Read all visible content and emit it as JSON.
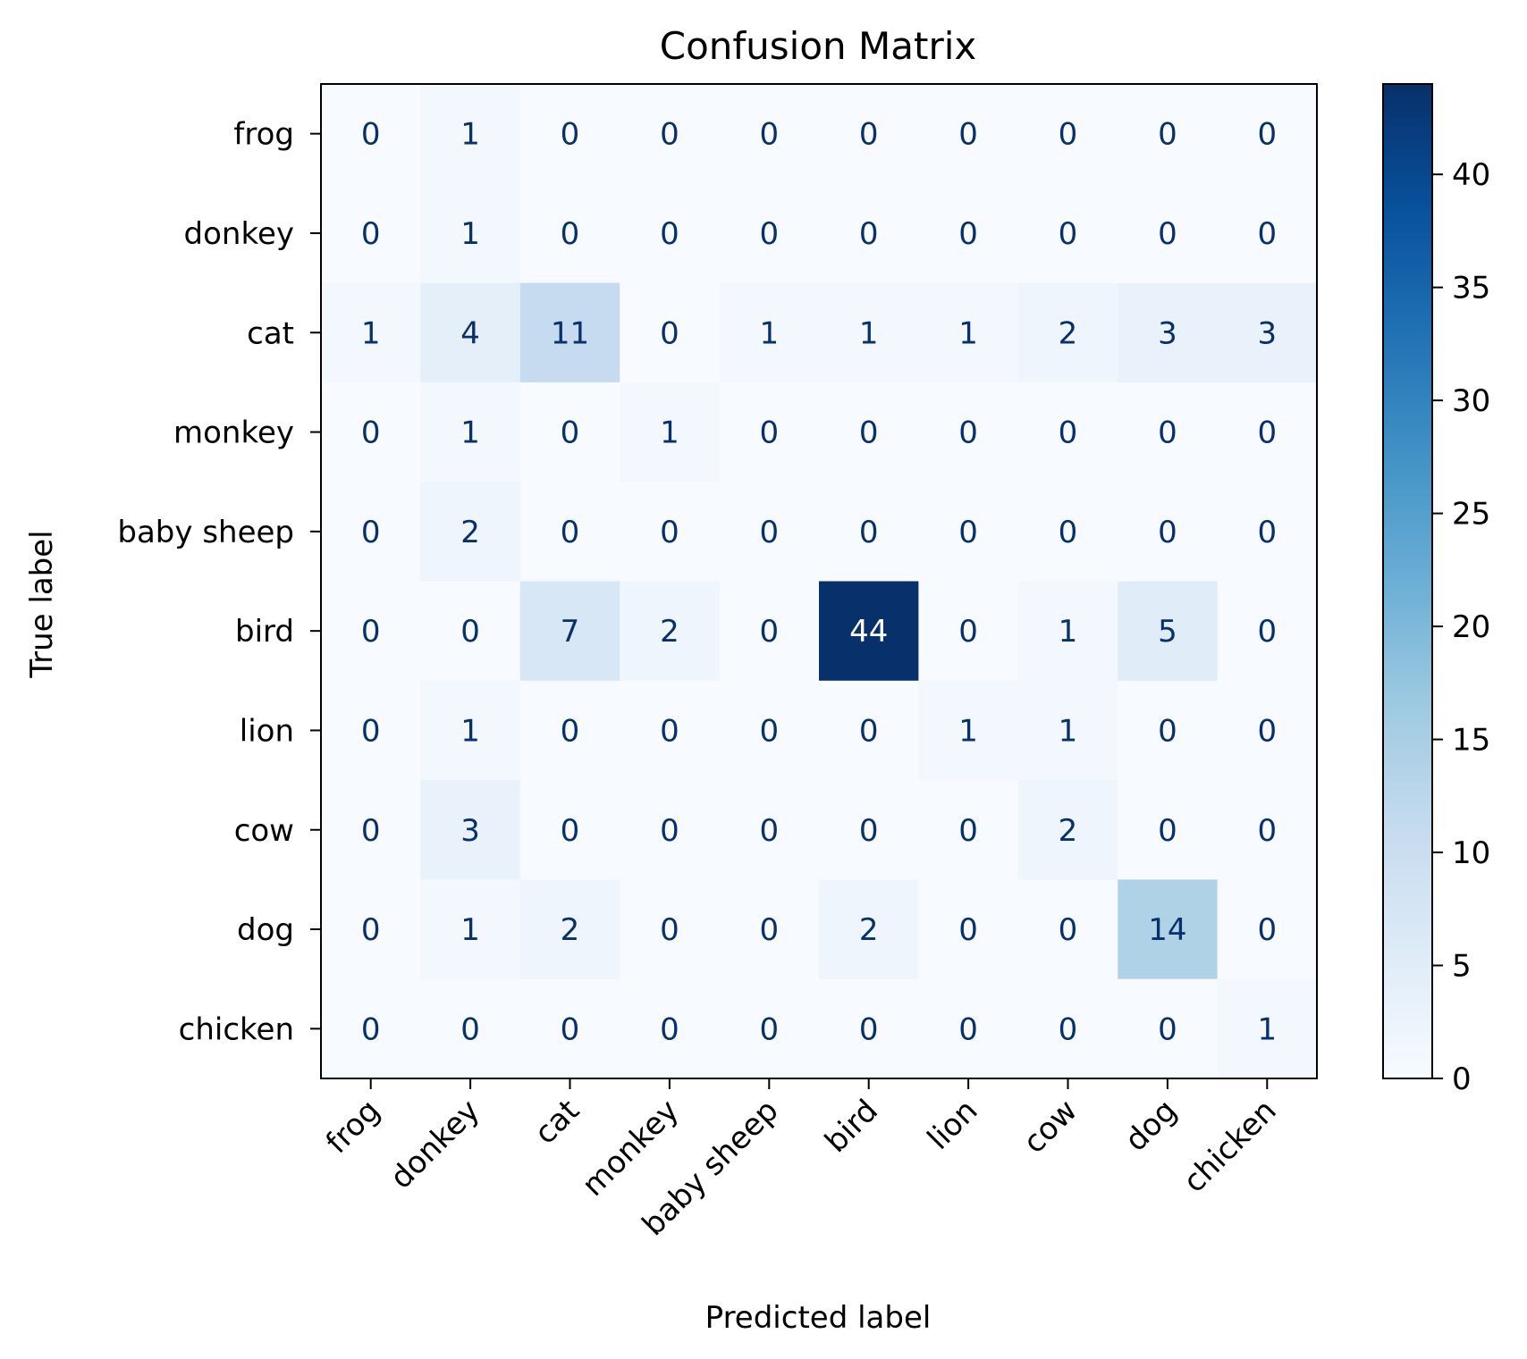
{
  "chart_data": {
    "type": "heatmap",
    "title": "Confusion Matrix",
    "xlabel": "Predicted label",
    "ylabel": "True label",
    "x_categories": [
      "frog",
      "donkey",
      "cat",
      "monkey",
      "baby sheep",
      "bird",
      "lion",
      "cow",
      "dog",
      "chicken"
    ],
    "y_categories": [
      "frog",
      "donkey",
      "cat",
      "monkey",
      "baby sheep",
      "bird",
      "lion",
      "cow",
      "dog",
      "chicken"
    ],
    "matrix": [
      [
        0,
        1,
        0,
        0,
        0,
        0,
        0,
        0,
        0,
        0
      ],
      [
        0,
        1,
        0,
        0,
        0,
        0,
        0,
        0,
        0,
        0
      ],
      [
        1,
        4,
        11,
        0,
        1,
        1,
        1,
        2,
        3,
        3
      ],
      [
        0,
        1,
        0,
        1,
        0,
        0,
        0,
        0,
        0,
        0
      ],
      [
        0,
        2,
        0,
        0,
        0,
        0,
        0,
        0,
        0,
        0
      ],
      [
        0,
        0,
        7,
        2,
        0,
        44,
        0,
        1,
        5,
        0
      ],
      [
        0,
        1,
        0,
        0,
        0,
        0,
        1,
        1,
        0,
        0
      ],
      [
        0,
        3,
        0,
        0,
        0,
        0,
        0,
        2,
        0,
        0
      ],
      [
        0,
        1,
        2,
        0,
        0,
        2,
        0,
        0,
        14,
        0
      ],
      [
        0,
        0,
        0,
        0,
        0,
        0,
        0,
        0,
        0,
        1
      ]
    ],
    "colormap": "Blues",
    "colorbar": {
      "range": [
        0,
        44
      ],
      "ticks": [
        0,
        5,
        10,
        15,
        20,
        25,
        30,
        35,
        40
      ]
    },
    "colormap_stops": [
      "#f7fbff",
      "#deebf7",
      "#c6dbef",
      "#9ecae1",
      "#6baed6",
      "#4292c6",
      "#2171b5",
      "#08519c",
      "#08306b"
    ],
    "text_color_dark": "#08306b",
    "text_color_light": "#ffffff",
    "grid": false
  }
}
